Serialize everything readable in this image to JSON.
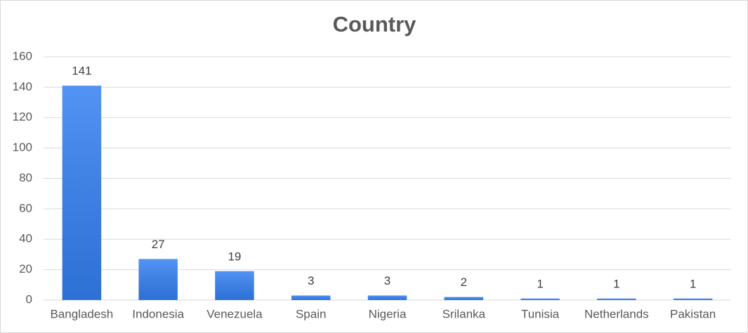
{
  "chart_data": {
    "type": "bar",
    "title": "Country",
    "categories": [
      "Bangladesh",
      "Indonesia",
      "Venezuela",
      "Spain",
      "Nigeria",
      "Srilanka",
      "Tunisia",
      "Netherlands",
      "Pakistan"
    ],
    "values": [
      141,
      27,
      19,
      3,
      3,
      2,
      1,
      1,
      1
    ],
    "color": "#3480f2",
    "ylim": [
      0,
      160
    ],
    "yticks": [
      0,
      20,
      40,
      60,
      80,
      100,
      120,
      140,
      160
    ],
    "grid": true
  }
}
